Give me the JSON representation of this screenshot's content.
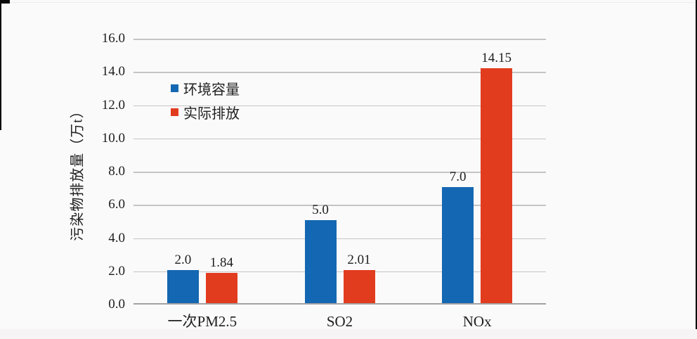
{
  "chart_data": {
    "type": "bar",
    "title": "",
    "xlabel": "",
    "ylabel": "污染物排放量（万t）",
    "categories": [
      "一次PM2.5",
      "SO2",
      "NOx"
    ],
    "series": [
      {
        "name": "环境容量",
        "color": "#1467b2",
        "values": [
          2.0,
          5.0,
          7.0
        ],
        "value_labels": [
          "2.0",
          "5.0",
          "7.0"
        ]
      },
      {
        "name": "实际排放",
        "color": "#e23c1f",
        "values": [
          1.84,
          2.01,
          14.15
        ],
        "value_labels": [
          "1.84",
          "2.01",
          "14.15"
        ]
      }
    ],
    "ylim": [
      0,
      16
    ],
    "ytick_step": 2,
    "yticks": [
      "16.0",
      "14.0",
      "12.0",
      "10.0",
      "8.0",
      "6.0",
      "4.0",
      "2.0",
      "0.0"
    ],
    "grid": true,
    "legend_position": "inside-upper-left"
  }
}
